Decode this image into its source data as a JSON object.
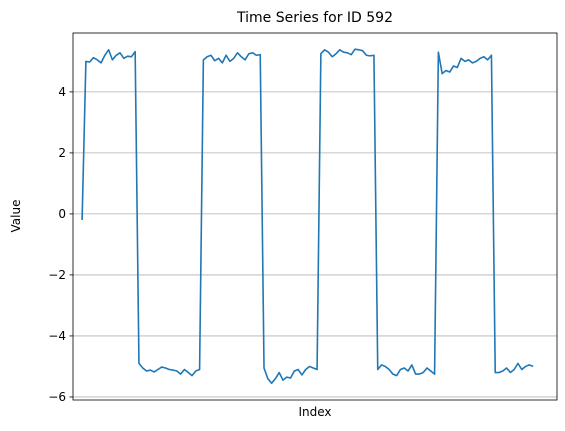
{
  "chart_data": {
    "type": "line",
    "title": "Time Series for ID 592",
    "x_label": "Index",
    "y_label": "Value",
    "series": [
      {
        "name": "ID 592",
        "color": "#1f77b4",
        "values": [
          -0.2,
          5.0,
          4.98,
          5.12,
          5.05,
          4.95,
          5.2,
          5.38,
          5.05,
          5.2,
          5.28,
          5.1,
          5.17,
          5.15,
          5.32,
          -4.9,
          -5.05,
          -5.15,
          -5.12,
          -5.18,
          -5.1,
          -5.02,
          -5.05,
          -5.1,
          -5.12,
          -5.15,
          -5.25,
          -5.1,
          -5.2,
          -5.3,
          -5.15,
          -5.1,
          5.05,
          5.15,
          5.2,
          5.02,
          5.1,
          4.95,
          5.2,
          5.0,
          5.1,
          5.28,
          5.15,
          5.05,
          5.25,
          5.28,
          5.2,
          5.22,
          -5.05,
          -5.4,
          -5.55,
          -5.4,
          -5.2,
          -5.45,
          -5.35,
          -5.38,
          -5.15,
          -5.1,
          -5.28,
          -5.1,
          -5.0,
          -5.05,
          -5.1,
          5.25,
          5.38,
          5.3,
          5.15,
          5.25,
          5.38,
          5.3,
          5.28,
          5.22,
          5.4,
          5.38,
          5.35,
          5.2,
          5.18,
          5.2,
          -5.1,
          -4.95,
          -5.0,
          -5.1,
          -5.25,
          -5.3,
          -5.1,
          -5.05,
          -5.15,
          -4.95,
          -5.25,
          -5.25,
          -5.2,
          -5.05,
          -5.15,
          -5.25,
          5.3,
          4.6,
          4.7,
          4.65,
          4.85,
          4.8,
          5.1,
          5.0,
          5.05,
          4.95,
          5.0,
          5.1,
          5.15,
          5.05,
          5.2,
          -5.2,
          -5.2,
          -5.15,
          -5.05,
          -5.2,
          -5.1,
          -4.9,
          -5.1,
          -5.0,
          -4.95,
          -5.0
        ]
      }
    ],
    "xlim": [
      -2.4,
      125.3
    ],
    "ylim": [
      -6.1,
      5.93
    ],
    "yticks": [
      {
        "value": -6,
        "label": "−6"
      },
      {
        "value": -4,
        "label": "−4"
      },
      {
        "value": -2,
        "label": "−2"
      },
      0,
      2,
      4
    ],
    "grid": "y"
  }
}
